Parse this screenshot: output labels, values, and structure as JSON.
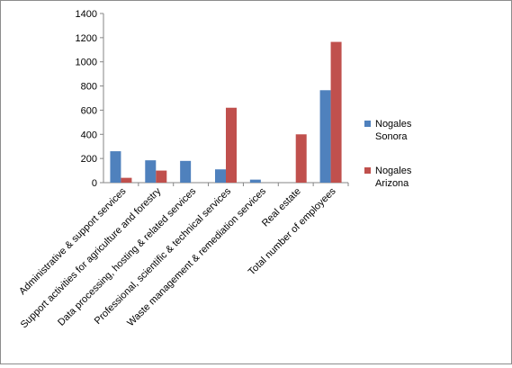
{
  "chart_data": {
    "type": "bar",
    "title": "",
    "xlabel": "",
    "ylabel": "",
    "ylim": [
      0,
      1400
    ],
    "yticks": [
      0,
      200,
      400,
      600,
      800,
      1000,
      1200,
      1400
    ],
    "grid": false,
    "legend_position": "right",
    "categories": [
      "Administrative & support services",
      "Support activities for agriculture and forestry",
      "Data processing, hosting & related services",
      "Professional, scientific & technical services",
      "Waste management & remediation services",
      "Real estate",
      "Total number of employees"
    ],
    "series": [
      {
        "name": "Nogales Sonora",
        "legend_lines": [
          "Nogales",
          "Sonora"
        ],
        "color": "#4f81bd",
        "values": [
          260,
          185,
          180,
          110,
          25,
          0,
          765
        ]
      },
      {
        "name": "Nogales Arizona",
        "legend_lines": [
          "Nogales",
          "Arizona"
        ],
        "color": "#c0504d",
        "values": [
          40,
          100,
          0,
          620,
          0,
          400,
          1165
        ]
      }
    ]
  }
}
